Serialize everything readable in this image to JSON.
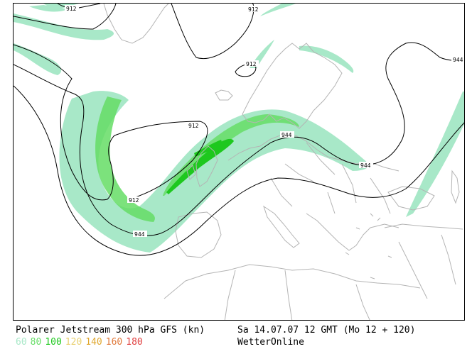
{
  "title": "Polarer Jetstream 300 hPa GFS (kn)",
  "valid_time": "Sa 14.07.07 12 GMT (Mo 12 + 120)",
  "brand": "WetterOnline",
  "legend": [
    {
      "label": "60",
      "color": "#a8e8c8"
    },
    {
      "label": "80",
      "color": "#66dd66"
    },
    {
      "label": "100",
      "color": "#1ec81e"
    },
    {
      "label": "120",
      "color": "#e8d070"
    },
    {
      "label": "140",
      "color": "#e0a830"
    },
    {
      "label": "160",
      "color": "#e07a3c"
    },
    {
      "label": "180",
      "color": "#e04040"
    }
  ],
  "contours": [
    {
      "value": "912",
      "label": "912"
    },
    {
      "value": "944",
      "label": "944"
    }
  ],
  "colors": {
    "coastline": "#b4b4b4",
    "contour": "#000000",
    "frame": "#000000"
  }
}
